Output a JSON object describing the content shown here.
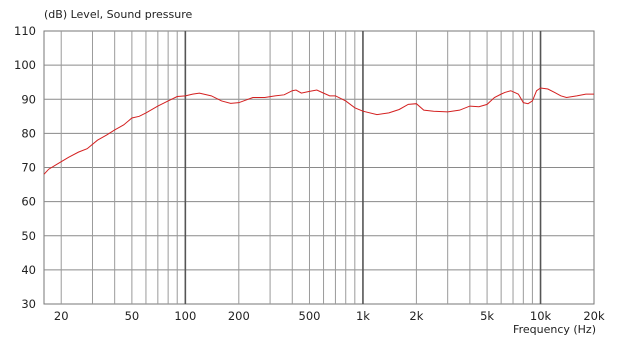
{
  "chart_data": {
    "type": "line",
    "title": "(dB)  Level, Sound pressure",
    "xlabel": "Frequency  (Hz)",
    "ylabel": "",
    "x_scale": "log",
    "xlim": [
      16,
      20000
    ],
    "ylim": [
      30,
      110
    ],
    "grid": true,
    "x_tick_values": [
      20,
      50,
      100,
      200,
      500,
      1000,
      2000,
      5000,
      10000,
      20000
    ],
    "x_tick_labels": [
      "20",
      "50",
      "100",
      "200",
      "500",
      "1k",
      "2k",
      "5k",
      "10k",
      "20k"
    ],
    "y_tick_values": [
      30,
      40,
      50,
      60,
      70,
      80,
      90,
      100,
      110
    ],
    "y_tick_labels": [
      "30",
      "40",
      "50",
      "60",
      "70",
      "80",
      "90",
      "100",
      "110"
    ],
    "line_color": "#d42020",
    "series": [
      {
        "x": [
          16,
          17,
          19,
          22,
          25,
          28,
          32,
          36,
          40,
          45,
          50,
          55,
          60,
          70,
          80,
          90,
          100,
          110,
          120,
          140,
          160,
          180,
          200,
          240,
          280,
          320,
          360,
          400,
          420,
          450,
          500,
          550,
          600,
          650,
          700,
          800,
          900,
          1000,
          1200,
          1400,
          1600,
          1800,
          2000,
          2200,
          2500,
          3000,
          3500,
          4000,
          4500,
          5000,
          5500,
          6000,
          6300,
          6800,
          7500,
          8000,
          8500,
          9000,
          9500,
          10000,
          11000,
          12000,
          13000,
          14000,
          16000,
          18000,
          20000
        ],
        "y": [
          68,
          69.5,
          71,
          73,
          74.5,
          75.5,
          78,
          79.5,
          81,
          82.5,
          84.5,
          85,
          86,
          88,
          89.5,
          90.8,
          91,
          91.5,
          91.8,
          91,
          89.5,
          88.8,
          89,
          90.5,
          90.5,
          91,
          91.3,
          92.5,
          92.7,
          91.8,
          92.3,
          92.7,
          91.8,
          91,
          91,
          89.5,
          87.5,
          86.5,
          85.5,
          86,
          87,
          88.5,
          88.7,
          86.8,
          86.5,
          86.3,
          86.8,
          88,
          87.8,
          88.5,
          90.5,
          91.5,
          92,
          92.5,
          91.5,
          89,
          88.7,
          89.5,
          92.5,
          93.3,
          93,
          92,
          91,
          90.5,
          91,
          91.5,
          91.5
        ]
      }
    ]
  }
}
